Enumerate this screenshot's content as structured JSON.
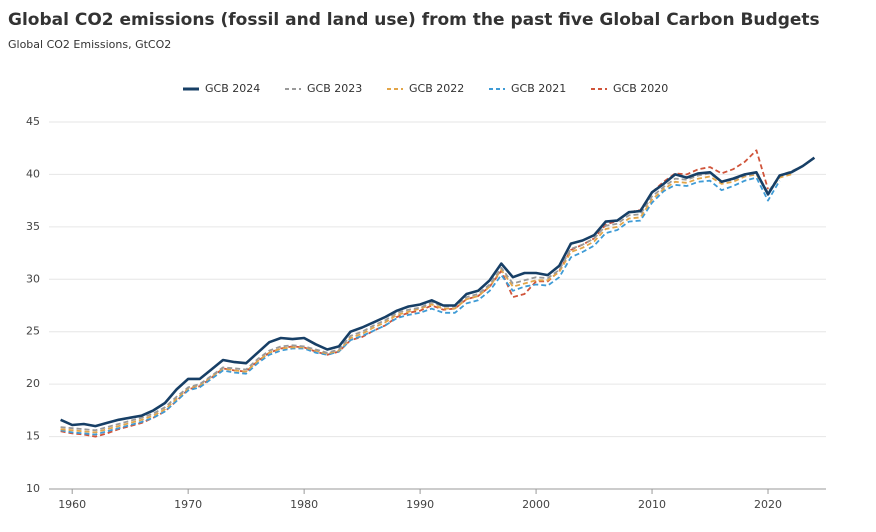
{
  "chart_data": {
    "type": "line",
    "title": "Global CO2 emissions (fossil and land use) from the past five Global Carbon Budgets",
    "subtitle": "Global CO2 Emissions, GtCO2",
    "x": [
      1959,
      1960,
      1961,
      1962,
      1963,
      1964,
      1965,
      1966,
      1967,
      1968,
      1969,
      1970,
      1971,
      1972,
      1973,
      1974,
      1975,
      1976,
      1977,
      1978,
      1979,
      1980,
      1981,
      1982,
      1983,
      1984,
      1985,
      1986,
      1987,
      1988,
      1989,
      1990,
      1991,
      1992,
      1993,
      1994,
      1995,
      1996,
      1997,
      1998,
      1999,
      2000,
      2001,
      2002,
      2003,
      2004,
      2005,
      2006,
      2007,
      2008,
      2009,
      2010,
      2011,
      2012,
      2013,
      2014,
      2015,
      2016,
      2017,
      2018,
      2019,
      2020,
      2021,
      2022,
      2023,
      2024
    ],
    "xlim": [
      1958,
      2025
    ],
    "xticks": [
      1960,
      1970,
      1980,
      1990,
      2000,
      2010,
      2020
    ],
    "ylim": [
      10,
      45
    ],
    "yticks": [
      10,
      15,
      20,
      25,
      30,
      35,
      40,
      45
    ],
    "grid": true,
    "legend": "top",
    "series": [
      {
        "name": "GCB 2024",
        "color": "#173f66",
        "dash": false,
        "values": [
          16.6,
          16.1,
          16.2,
          16.0,
          16.3,
          16.6,
          16.8,
          17.0,
          17.5,
          18.2,
          19.5,
          20.5,
          20.5,
          21.4,
          22.3,
          22.1,
          22.0,
          23.0,
          24.0,
          24.4,
          24.3,
          24.4,
          23.8,
          23.3,
          23.6,
          25.0,
          25.4,
          25.9,
          26.4,
          27.0,
          27.4,
          27.6,
          28.0,
          27.5,
          27.5,
          28.6,
          28.9,
          29.9,
          31.5,
          30.2,
          30.6,
          30.6,
          30.4,
          31.3,
          33.4,
          33.7,
          34.2,
          35.5,
          35.6,
          36.4,
          36.5,
          38.3,
          39.1,
          40.0,
          39.7,
          40.1,
          40.2,
          39.3,
          39.6,
          40.0,
          40.2,
          38.1,
          39.9,
          40.2,
          40.8,
          41.6
        ]
      },
      {
        "name": "GCB 2023",
        "color": "#9a9a9a",
        "dash": true,
        "values": [
          15.9,
          15.8,
          15.7,
          15.6,
          15.9,
          16.2,
          16.5,
          16.8,
          17.2,
          17.8,
          18.8,
          19.7,
          20.0,
          20.8,
          21.6,
          21.5,
          21.4,
          22.4,
          23.2,
          23.6,
          23.7,
          23.6,
          23.3,
          23.0,
          23.3,
          24.6,
          25.0,
          25.6,
          26.1,
          26.8,
          27.1,
          27.3,
          27.8,
          27.4,
          27.4,
          28.3,
          28.6,
          29.5,
          31.1,
          29.6,
          29.9,
          30.2,
          30.1,
          30.9,
          32.9,
          33.3,
          33.9,
          35.1,
          35.3,
          36.1,
          36.2,
          37.9,
          38.8,
          39.6,
          39.5,
          39.9,
          40.1,
          39.3,
          39.5,
          39.9,
          40.1,
          38.3,
          39.9,
          40.3,
          40.8,
          null
        ]
      },
      {
        "name": "GCB 2022",
        "color": "#e3a548",
        "dash": true,
        "values": [
          15.7,
          15.6,
          15.5,
          15.4,
          15.7,
          16.0,
          16.3,
          16.6,
          17.0,
          17.6,
          18.6,
          19.6,
          19.9,
          20.7,
          21.5,
          21.3,
          21.2,
          22.2,
          23.0,
          23.4,
          23.5,
          23.5,
          23.2,
          22.9,
          23.2,
          24.4,
          24.8,
          25.4,
          25.9,
          26.6,
          26.9,
          27.2,
          27.6,
          27.2,
          27.2,
          28.1,
          28.4,
          29.3,
          30.9,
          29.3,
          29.6,
          29.9,
          29.9,
          30.7,
          32.6,
          33.0,
          33.6,
          34.8,
          35.0,
          35.8,
          35.9,
          37.6,
          38.6,
          39.3,
          39.2,
          39.6,
          39.8,
          39.1,
          39.3,
          39.8,
          40.0,
          38.2,
          39.7,
          40.0,
          null,
          null
        ]
      },
      {
        "name": "GCB 2021",
        "color": "#3e9bd6",
        "dash": true,
        "values": [
          15.6,
          15.4,
          15.3,
          15.2,
          15.5,
          15.8,
          16.1,
          16.4,
          16.8,
          17.4,
          18.4,
          19.4,
          19.7,
          20.5,
          21.3,
          21.1,
          21.0,
          22.0,
          22.8,
          23.2,
          23.4,
          23.4,
          23.0,
          22.8,
          23.1,
          24.2,
          24.6,
          25.1,
          25.6,
          26.3,
          26.6,
          26.8,
          27.2,
          26.8,
          26.8,
          27.7,
          28.0,
          28.9,
          30.4,
          28.9,
          29.3,
          29.5,
          29.4,
          30.2,
          32.1,
          32.6,
          33.2,
          34.4,
          34.7,
          35.5,
          35.6,
          37.3,
          38.4,
          39.0,
          38.9,
          39.3,
          39.4,
          38.5,
          38.9,
          39.4,
          39.7,
          37.5,
          39.4,
          null,
          null,
          null
        ]
      },
      {
        "name": "GCB 2020",
        "color": "#d0543a",
        "dash": true,
        "values": [
          15.5,
          15.3,
          15.2,
          15.0,
          15.3,
          15.7,
          16.0,
          16.3,
          16.8,
          17.4,
          18.4,
          19.5,
          19.8,
          20.6,
          21.5,
          21.3,
          21.2,
          22.2,
          23.0,
          23.4,
          23.6,
          23.5,
          23.1,
          22.8,
          23.1,
          24.2,
          24.5,
          25.1,
          25.6,
          26.4,
          26.8,
          27.0,
          27.5,
          27.1,
          27.2,
          28.1,
          28.4,
          29.3,
          30.8,
          28.3,
          28.6,
          29.8,
          29.8,
          30.8,
          32.8,
          33.3,
          33.9,
          35.2,
          35.6,
          36.4,
          36.6,
          38.3,
          39.3,
          40.1,
          40.0,
          40.5,
          40.7,
          40.1,
          40.5,
          41.2,
          42.3,
          38.6,
          null,
          null,
          null,
          null
        ]
      }
    ]
  }
}
